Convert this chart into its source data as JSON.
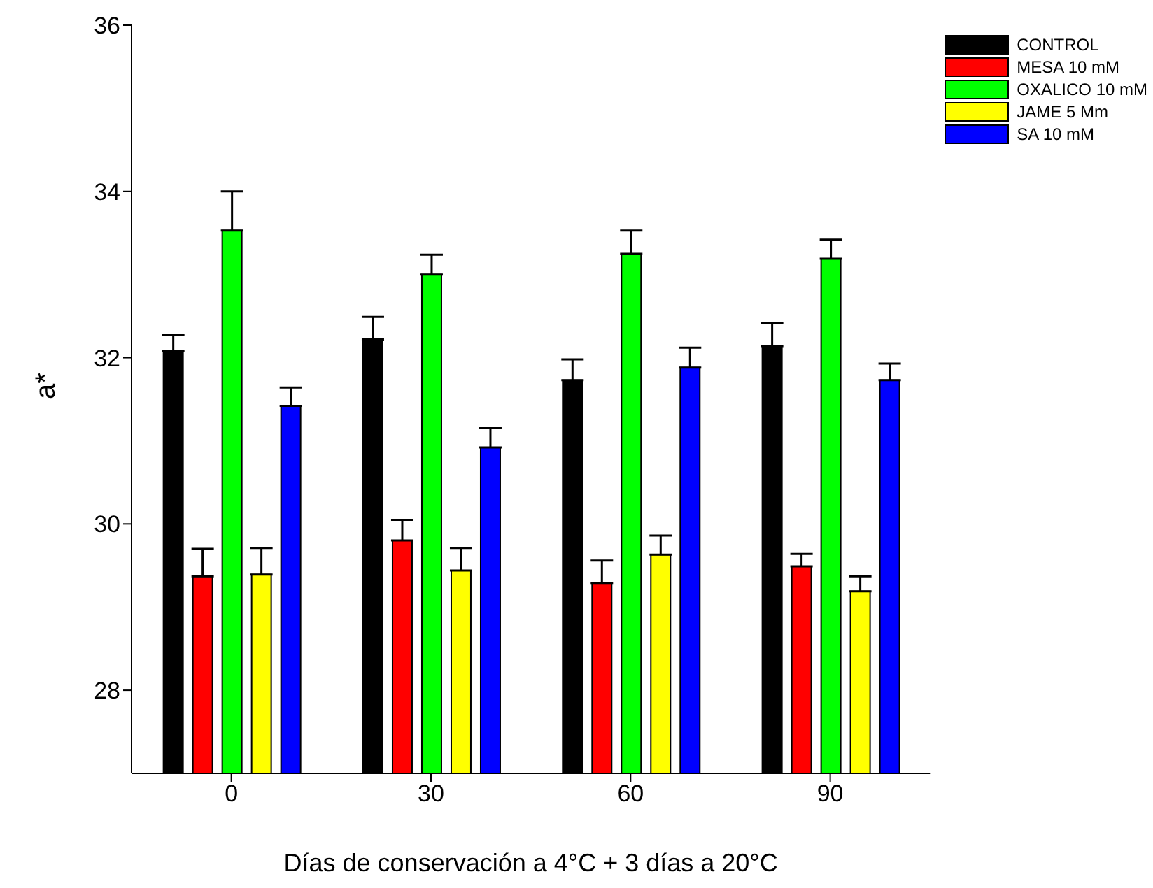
{
  "chart_data": {
    "type": "bar",
    "xlabel": "Días de conservación a 4°C + 3 días a 20°C",
    "ylabel": "a*",
    "categories": [
      "0",
      "30",
      "60",
      "90"
    ],
    "series": [
      {
        "name": "CONTROL",
        "color": "#000000",
        "values": [
          32.08,
          32.22,
          31.73,
          32.14
        ],
        "errors": [
          [
            32.08,
            32.27
          ],
          [
            32.22,
            32.49
          ],
          [
            31.73,
            31.98
          ],
          [
            32.14,
            32.42
          ]
        ]
      },
      {
        "name": "MESA 10 mM",
        "color": "#ff0000",
        "values": [
          29.37,
          29.8,
          29.29,
          29.49
        ],
        "errors": [
          [
            29.37,
            29.7
          ],
          [
            29.8,
            30.05
          ],
          [
            29.29,
            29.56
          ],
          [
            29.49,
            29.64
          ]
        ]
      },
      {
        "name": "OXALICO 10 mM",
        "color": "#00ff00",
        "values": [
          33.53,
          33.0,
          33.25,
          33.19
        ],
        "errors": [
          [
            33.53,
            34.0
          ],
          [
            33.0,
            33.24
          ],
          [
            33.25,
            33.53
          ],
          [
            33.19,
            33.42
          ]
        ]
      },
      {
        "name": "JAME 5 Mm",
        "color": "#ffff00",
        "values": [
          29.39,
          29.44,
          29.63,
          29.19
        ],
        "errors": [
          [
            29.39,
            29.71
          ],
          [
            29.44,
            29.71
          ],
          [
            29.63,
            29.86
          ],
          [
            29.19,
            29.37
          ]
        ]
      },
      {
        "name": "SA 10 mM",
        "color": "#0000ff",
        "values": [
          31.42,
          30.92,
          31.88,
          31.73
        ],
        "errors": [
          [
            31.42,
            31.64
          ],
          [
            30.92,
            31.15
          ],
          [
            31.88,
            32.12
          ],
          [
            31.73,
            31.93
          ]
        ]
      }
    ],
    "ylim": [
      27,
      36
    ],
    "yticks": [
      28,
      30,
      32,
      34,
      36
    ],
    "grid": false,
    "legend": "top right"
  }
}
